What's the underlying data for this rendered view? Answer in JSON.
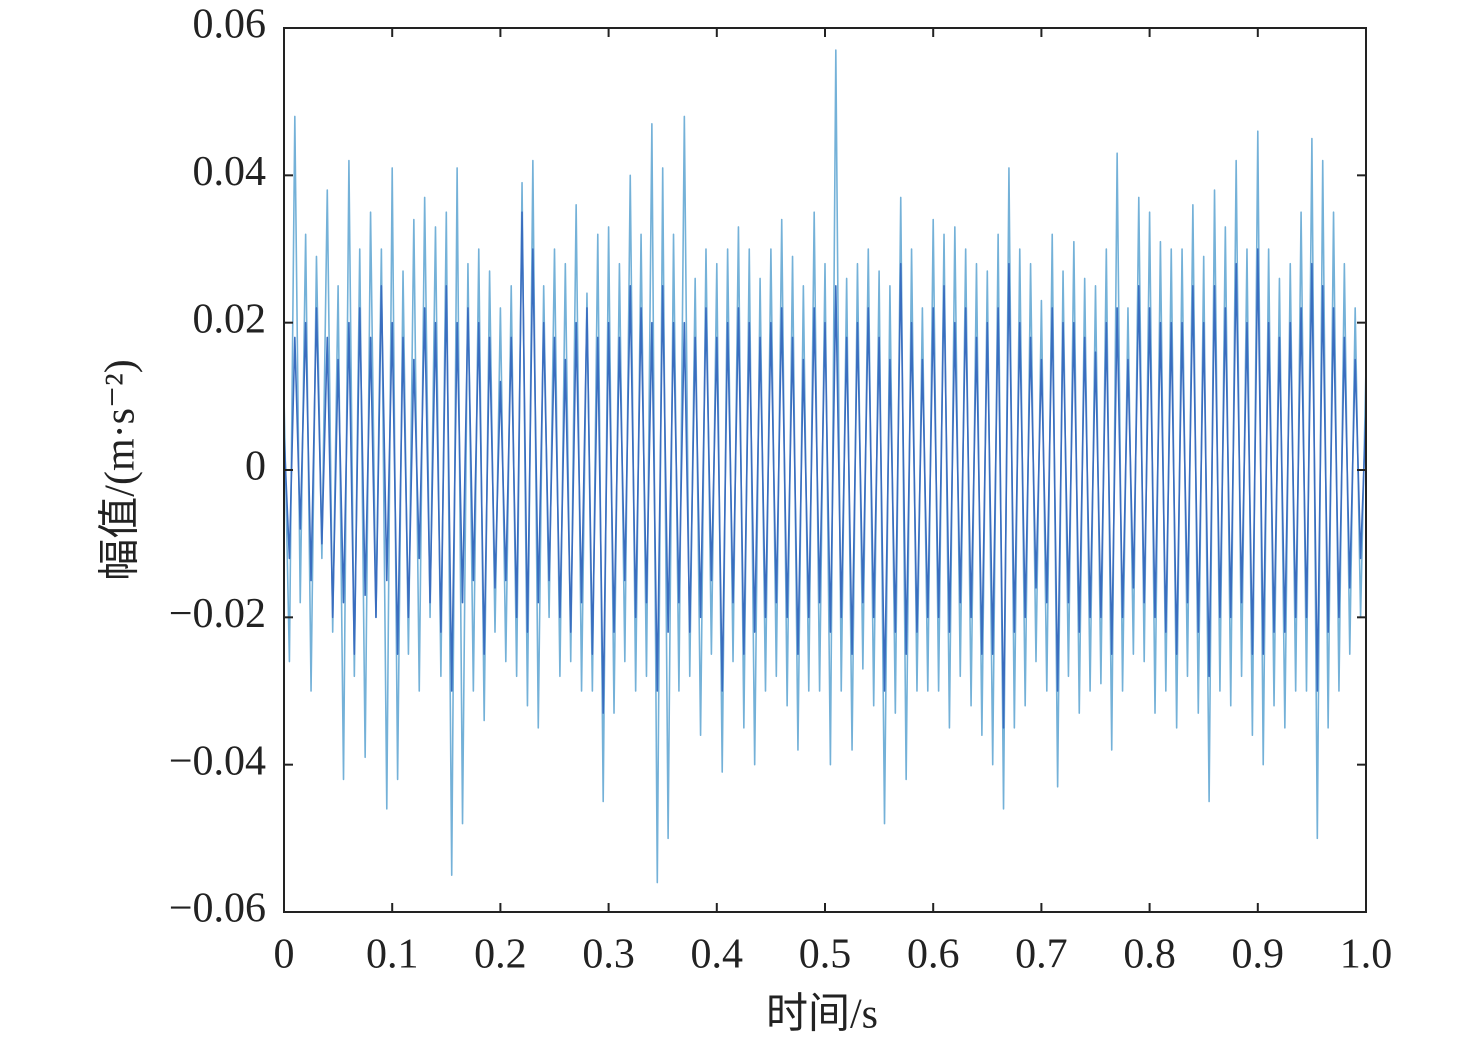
{
  "chart_data": {
    "type": "line",
    "x_label": "时间/s",
    "y_label": "幅值/(m·s⁻²)",
    "xlim": [
      0,
      1
    ],
    "ylim": [
      -0.06,
      0.06
    ],
    "xticks": [
      0,
      0.1,
      0.2,
      0.3,
      0.4,
      0.5,
      0.6,
      0.7,
      0.8,
      0.9,
      {
        "value": 1,
        "label": "1.0"
      }
    ],
    "yticks": [
      {
        "value": -0.06,
        "label": "−0.06"
      },
      {
        "value": -0.04,
        "label": "−0.04"
      },
      {
        "value": -0.02,
        "label": "−0.02"
      },
      0,
      0.02,
      0.04,
      0.06
    ],
    "x": [
      0,
      0.005,
      0.01,
      0.015,
      0.02,
      0.025,
      0.03,
      0.035,
      0.04,
      0.045,
      0.05,
      0.055,
      0.06,
      0.065,
      0.07,
      0.075,
      0.08,
      0.085,
      0.09,
      0.095,
      0.1,
      0.105,
      0.11,
      0.115,
      0.12,
      0.125,
      0.13,
      0.135,
      0.14,
      0.145,
      0.15,
      0.155,
      0.16,
      0.165,
      0.17,
      0.175,
      0.18,
      0.185,
      0.19,
      0.195,
      0.2,
      0.205,
      0.21,
      0.215,
      0.22,
      0.225,
      0.23,
      0.235,
      0.24,
      0.245,
      0.25,
      0.255,
      0.26,
      0.265,
      0.27,
      0.275,
      0.28,
      0.285,
      0.29,
      0.295,
      0.3,
      0.305,
      0.31,
      0.315,
      0.32,
      0.325,
      0.33,
      0.335,
      0.34,
      0.345,
      0.35,
      0.355,
      0.36,
      0.365,
      0.37,
      0.375,
      0.38,
      0.385,
      0.39,
      0.395,
      0.4,
      0.405,
      0.41,
      0.415,
      0.42,
      0.425,
      0.43,
      0.435,
      0.44,
      0.445,
      0.45,
      0.455,
      0.46,
      0.465,
      0.47,
      0.475,
      0.48,
      0.485,
      0.49,
      0.495,
      0.5,
      0.505,
      0.51,
      0.515,
      0.52,
      0.525,
      0.53,
      0.535,
      0.54,
      0.545,
      0.55,
      0.555,
      0.56,
      0.565,
      0.57,
      0.575,
      0.58,
      0.585,
      0.59,
      0.595,
      0.6,
      0.605,
      0.61,
      0.615,
      0.62,
      0.625,
      0.63,
      0.635,
      0.64,
      0.645,
      0.65,
      0.655,
      0.66,
      0.665,
      0.67,
      0.675,
      0.68,
      0.685,
      0.69,
      0.695,
      0.7,
      0.705,
      0.71,
      0.715,
      0.72,
      0.725,
      0.73,
      0.735,
      0.74,
      0.745,
      0.75,
      0.755,
      0.76,
      0.765,
      0.77,
      0.775,
      0.78,
      0.785,
      0.79,
      0.795,
      0.8,
      0.805,
      0.81,
      0.815,
      0.82,
      0.825,
      0.83,
      0.835,
      0.84,
      0.845,
      0.85,
      0.855,
      0.86,
      0.865,
      0.87,
      0.875,
      0.88,
      0.885,
      0.89,
      0.895,
      0.9,
      0.905,
      0.91,
      0.915,
      0.92,
      0.925,
      0.93,
      0.935,
      0.94,
      0.945,
      0.95,
      0.955,
      0.96,
      0.965,
      0.97,
      0.975,
      0.98,
      0.985,
      0.99,
      0.995,
      1
    ],
    "series": [
      {
        "color": "#74b1d8",
        "values": [
          0.01,
          -0.026,
          0.048,
          -0.018,
          0.032,
          -0.03,
          0.029,
          -0.012,
          0.038,
          -0.022,
          0.025,
          -0.042,
          0.042,
          -0.028,
          0.03,
          -0.039,
          0.035,
          -0.02,
          0.03,
          -0.046,
          0.041,
          -0.042,
          0.027,
          -0.025,
          0.034,
          -0.03,
          0.037,
          -0.02,
          0.033,
          -0.028,
          0.035,
          -0.055,
          0.041,
          -0.048,
          0.028,
          -0.03,
          0.03,
          -0.034,
          0.027,
          -0.022,
          0.022,
          -0.026,
          0.025,
          -0.028,
          0.039,
          -0.032,
          0.042,
          -0.035,
          0.025,
          -0.02,
          0.03,
          -0.028,
          0.028,
          -0.026,
          0.036,
          -0.03,
          0.024,
          -0.03,
          0.032,
          -0.045,
          0.033,
          -0.033,
          0.028,
          -0.026,
          0.04,
          -0.03,
          0.032,
          -0.028,
          0.047,
          -0.056,
          0.041,
          -0.05,
          0.032,
          -0.03,
          0.048,
          -0.028,
          0.026,
          -0.036,
          0.03,
          -0.025,
          0.028,
          -0.041,
          0.03,
          -0.026,
          0.033,
          -0.035,
          0.03,
          -0.04,
          0.026,
          -0.03,
          0.03,
          -0.028,
          0.034,
          -0.032,
          0.029,
          -0.038,
          0.025,
          -0.03,
          0.035,
          -0.03,
          0.028,
          -0.04,
          0.057,
          -0.03,
          0.026,
          -0.038,
          0.028,
          -0.027,
          0.03,
          -0.032,
          0.027,
          -0.048,
          0.025,
          -0.033,
          0.037,
          -0.042,
          0.03,
          -0.03,
          0.022,
          -0.03,
          0.034,
          -0.03,
          0.032,
          -0.035,
          0.033,
          -0.028,
          0.03,
          -0.032,
          0.028,
          -0.036,
          0.027,
          -0.04,
          0.032,
          -0.046,
          0.041,
          -0.035,
          0.03,
          -0.032,
          0.028,
          -0.026,
          0.023,
          -0.03,
          0.032,
          -0.043,
          0.027,
          -0.028,
          0.031,
          -0.033,
          0.026,
          -0.03,
          0.025,
          -0.029,
          0.03,
          -0.038,
          0.043,
          -0.03,
          0.022,
          -0.025,
          0.037,
          -0.026,
          0.035,
          -0.033,
          0.031,
          -0.03,
          0.03,
          -0.035,
          0.03,
          -0.028,
          0.036,
          -0.033,
          0.029,
          -0.045,
          0.038,
          -0.03,
          0.033,
          -0.032,
          0.042,
          -0.028,
          0.03,
          -0.036,
          0.046,
          -0.04,
          0.03,
          -0.032,
          0.026,
          -0.035,
          0.028,
          -0.03,
          0.035,
          -0.03,
          0.045,
          -0.05,
          0.042,
          -0.035,
          0.035,
          -0.03,
          0.028,
          -0.025,
          0.022,
          -0.02,
          0.014
        ]
      },
      {
        "color": "#3a6dbf",
        "values": [
          0.005,
          -0.012,
          0.018,
          -0.008,
          0.02,
          -0.015,
          0.022,
          -0.01,
          0.018,
          -0.02,
          0.015,
          -0.018,
          0.02,
          -0.025,
          0.022,
          -0.017,
          0.018,
          -0.02,
          0.025,
          -0.015,
          0.02,
          -0.025,
          0.018,
          -0.02,
          0.015,
          -0.012,
          0.022,
          -0.018,
          0.02,
          -0.022,
          0.025,
          -0.03,
          0.02,
          -0.018,
          0.022,
          -0.015,
          0.02,
          -0.025,
          0.018,
          -0.016,
          0.012,
          -0.015,
          0.018,
          -0.02,
          0.035,
          -0.022,
          0.03,
          -0.018,
          0.02,
          -0.015,
          0.018,
          -0.02,
          0.015,
          -0.022,
          0.02,
          -0.018,
          0.022,
          -0.025,
          0.018,
          -0.033,
          0.02,
          -0.022,
          0.018,
          -0.015,
          0.025,
          -0.02,
          0.022,
          -0.018,
          0.02,
          -0.03,
          0.025,
          -0.022,
          0.02,
          -0.018,
          0.02,
          -0.022,
          0.018,
          -0.02,
          0.022,
          -0.015,
          0.018,
          -0.03,
          0.02,
          -0.018,
          0.022,
          -0.025,
          0.02,
          -0.022,
          0.018,
          -0.02,
          0.02,
          -0.018,
          0.022,
          -0.02,
          0.018,
          -0.025,
          0.015,
          -0.02,
          0.022,
          -0.018,
          0.02,
          -0.022,
          0.025,
          -0.02,
          0.018,
          -0.025,
          0.02,
          -0.018,
          0.022,
          -0.02,
          0.018,
          -0.03,
          0.015,
          -0.022,
          0.028,
          -0.025,
          0.02,
          -0.022,
          0.015,
          -0.02,
          0.022,
          -0.02,
          0.025,
          -0.022,
          0.02,
          -0.018,
          0.022,
          -0.02,
          0.018,
          -0.025,
          0.02,
          -0.025,
          0.022,
          -0.035,
          0.028,
          -0.022,
          0.02,
          -0.02,
          0.018,
          -0.016,
          0.015,
          -0.018,
          0.022,
          -0.03,
          0.02,
          -0.018,
          0.02,
          -0.022,
          0.018,
          -0.02,
          0.016,
          -0.02,
          0.02,
          -0.025,
          0.022,
          -0.02,
          0.015,
          -0.016,
          0.025,
          -0.018,
          0.022,
          -0.02,
          0.02,
          -0.022,
          0.02,
          -0.025,
          0.02,
          -0.018,
          0.025,
          -0.022,
          0.02,
          -0.028,
          0.025,
          -0.02,
          0.022,
          -0.02,
          0.028,
          -0.018,
          0.02,
          -0.025,
          0.03,
          -0.025,
          0.02,
          -0.022,
          0.018,
          -0.022,
          0.02,
          -0.02,
          0.022,
          -0.02,
          0.028,
          -0.03,
          0.025,
          -0.022,
          0.022,
          -0.02,
          0.018,
          -0.016,
          0.015,
          -0.012,
          0.008
        ]
      }
    ]
  }
}
